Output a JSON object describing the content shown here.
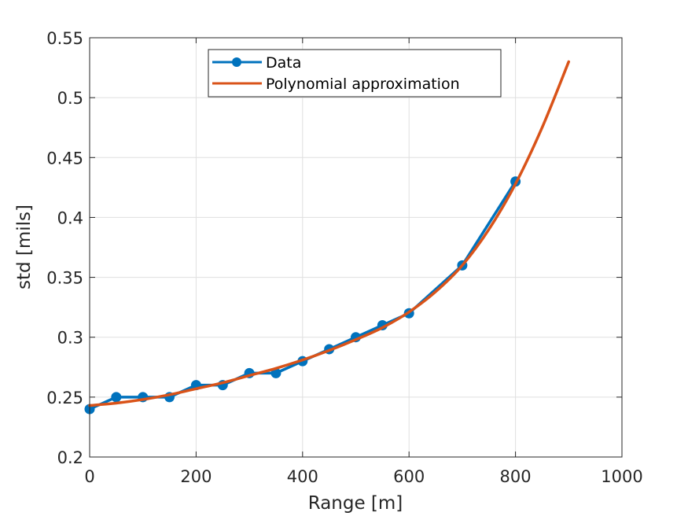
{
  "chart_data": {
    "type": "line",
    "title": "",
    "xlabel": "Range [m]",
    "ylabel": "std [mils]",
    "xlim": [
      0,
      1000
    ],
    "ylim": [
      0.2,
      0.55
    ],
    "xticks": [
      0,
      200,
      400,
      600,
      800,
      1000
    ],
    "xtick_labels": [
      "0",
      "200",
      "400",
      "600",
      "800",
      "1000"
    ],
    "yticks": [
      0.2,
      0.25,
      0.3,
      0.35,
      0.4,
      0.45,
      0.5,
      0.55
    ],
    "ytick_labels": [
      "0.2",
      "0.25",
      "0.3",
      "0.35",
      "0.4",
      "0.45",
      "0.5",
      "0.55"
    ],
    "grid": true,
    "legend_position": "top-center",
    "series": [
      {
        "name": "Data",
        "color": "#0072BD",
        "style": "line-with-circle-markers",
        "x": [
          0,
          50,
          100,
          150,
          200,
          250,
          300,
          350,
          400,
          450,
          500,
          550,
          600,
          700,
          800
        ],
        "y": [
          0.24,
          0.25,
          0.25,
          0.25,
          0.26,
          0.26,
          0.27,
          0.27,
          0.28,
          0.29,
          0.3,
          0.31,
          0.32,
          0.36,
          0.43
        ]
      },
      {
        "name": "Polynomial approximation",
        "color": "#D95319",
        "style": "smooth-line",
        "x": [
          0,
          50,
          100,
          150,
          200,
          250,
          300,
          350,
          400,
          450,
          500,
          550,
          600,
          650,
          700,
          750,
          800,
          850,
          900
        ],
        "y": [
          0.243,
          0.245,
          0.248,
          0.252,
          0.257,
          0.262,
          0.268,
          0.274,
          0.281,
          0.289,
          0.298,
          0.308,
          0.321,
          0.338,
          0.36,
          0.39,
          0.428,
          0.475,
          0.53
        ]
      }
    ]
  }
}
